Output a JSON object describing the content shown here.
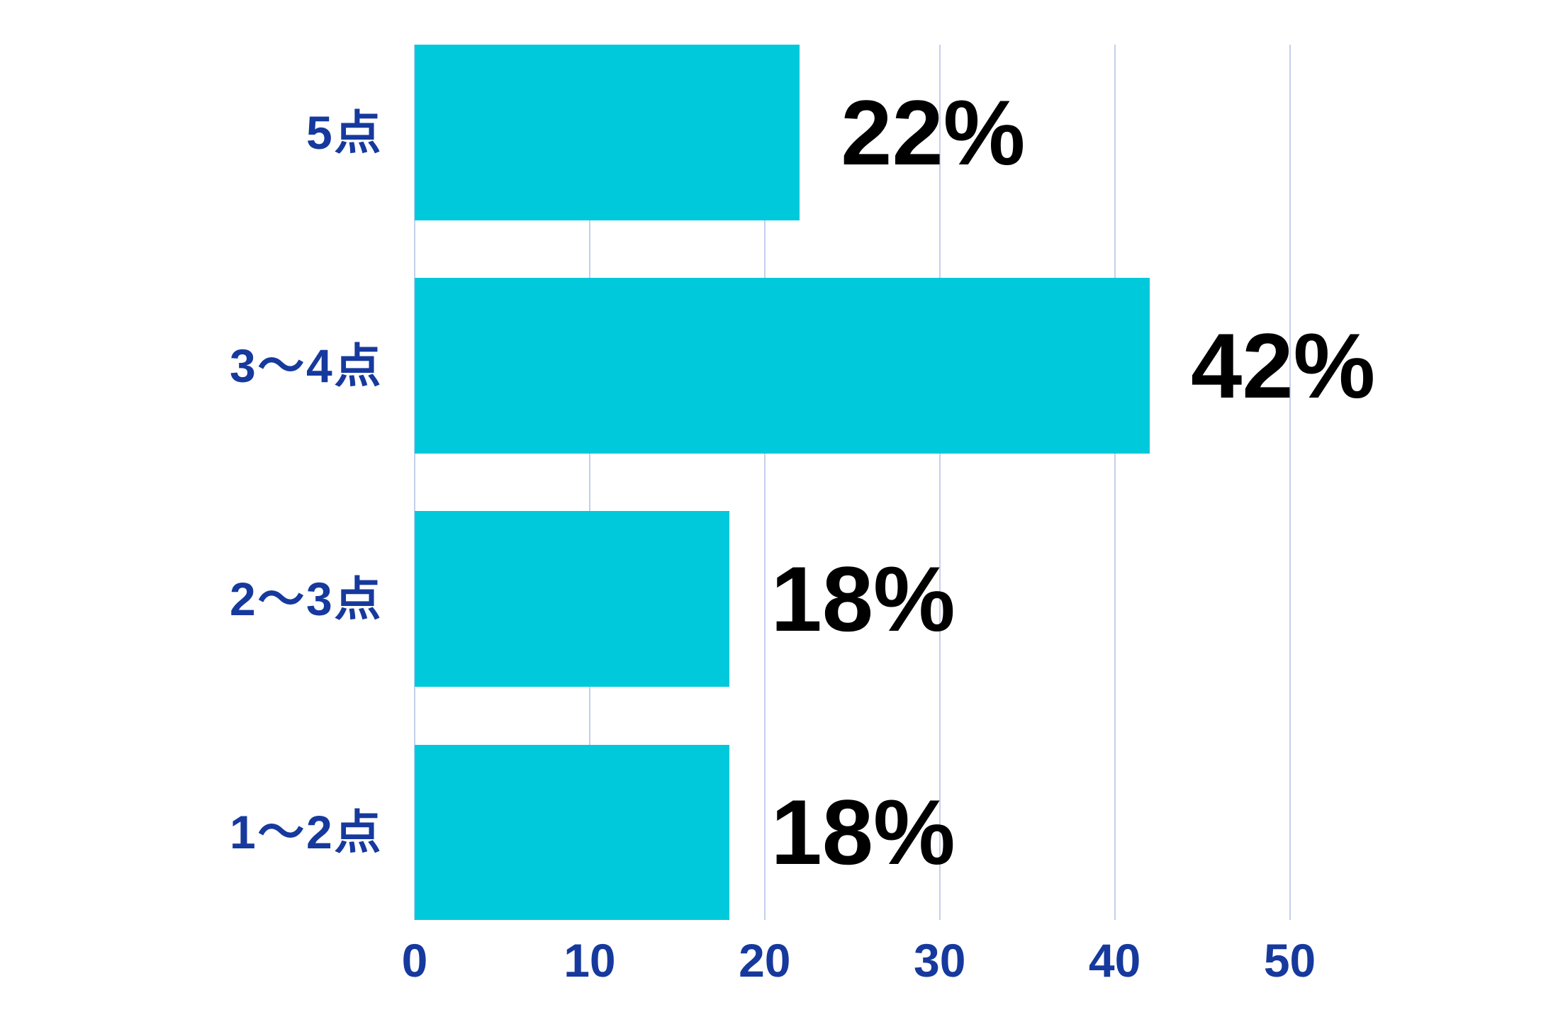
{
  "chart_data": {
    "type": "bar",
    "orientation": "horizontal",
    "title": "",
    "xlabel": "",
    "ylabel": "",
    "categories": [
      "5点",
      "3〜4点",
      "2〜3点",
      "1〜2点"
    ],
    "values": [
      22,
      42,
      18,
      18
    ],
    "data_labels": [
      "22%",
      "42%",
      "18%",
      "18%"
    ],
    "x_ticks": [
      0,
      10,
      20,
      30,
      40,
      50
    ],
    "x_tick_labels": [
      "0",
      "10",
      "20",
      "30",
      "40",
      "50"
    ],
    "xlim": [
      0,
      55
    ],
    "grid": "vertical-major-only",
    "legend": "none",
    "colors": {
      "bar": "#00c9db",
      "axis_text": "#16399d",
      "data_label_text": "#000000",
      "gridline": "#c4cfec",
      "background": "#ffffff"
    }
  }
}
